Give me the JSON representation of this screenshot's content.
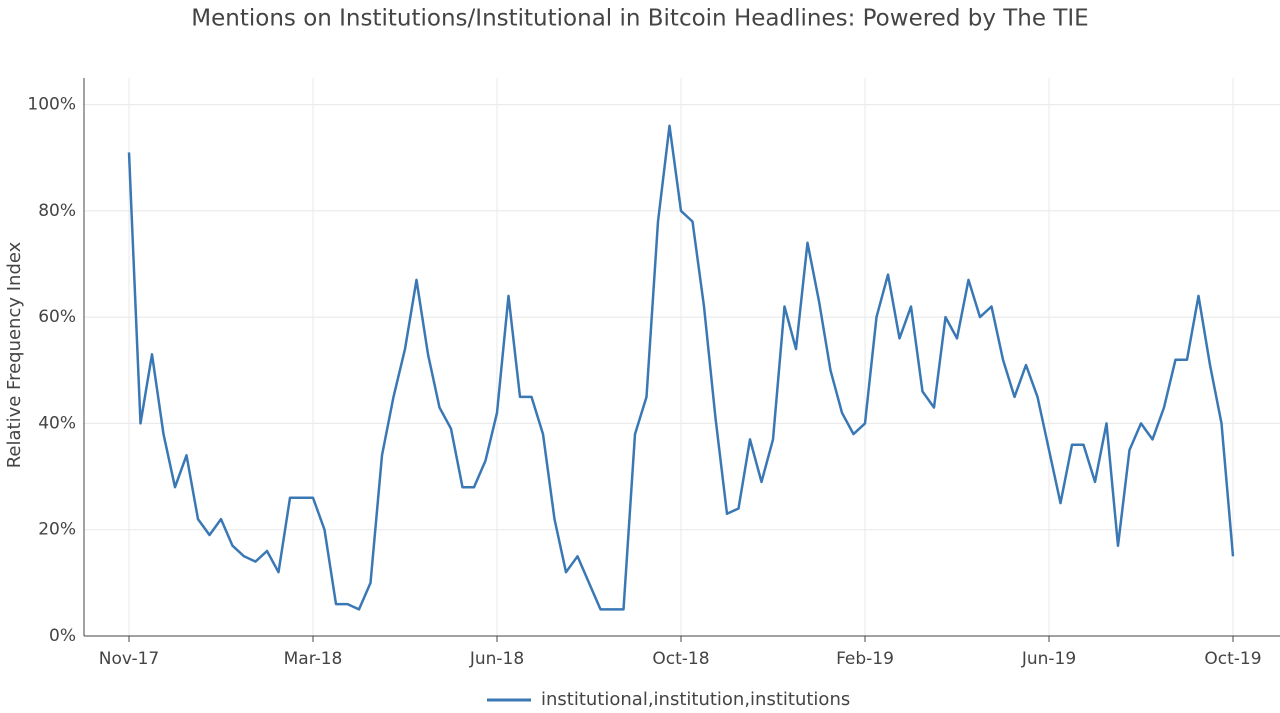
{
  "chart_data": {
    "type": "line",
    "title": "Mentions on Institutions/Institutional in Bitcoin Headlines: Powered by The TIE",
    "y_label": "Relative Frequency Index",
    "categories": [
      "Nov-17",
      null,
      null,
      null,
      null,
      null,
      null,
      null,
      null,
      null,
      null,
      null,
      null,
      null,
      null,
      null,
      "Mar-18",
      null,
      null,
      null,
      null,
      null,
      null,
      null,
      null,
      null,
      null,
      null,
      null,
      null,
      null,
      null,
      "Jun-18",
      null,
      null,
      null,
      null,
      null,
      null,
      null,
      null,
      null,
      null,
      null,
      null,
      null,
      null,
      null,
      "Oct-18",
      null,
      null,
      null,
      null,
      null,
      null,
      null,
      null,
      null,
      null,
      null,
      null,
      null,
      null,
      null,
      "Feb-19",
      null,
      null,
      null,
      null,
      null,
      null,
      null,
      null,
      null,
      null,
      null,
      null,
      null,
      null,
      null,
      "Jun-19",
      null,
      null,
      null,
      null,
      null,
      null,
      null,
      null,
      null,
      null,
      null,
      null,
      null,
      null,
      null,
      "Oct-19"
    ],
    "series": [
      {
        "name": "institutional,institution,institutions",
        "color": "#3a78b5",
        "values": [
          91,
          40,
          53,
          38,
          28,
          34,
          22,
          19,
          22,
          17,
          15,
          14,
          16,
          12,
          26,
          26,
          26,
          20,
          6,
          6,
          5,
          10,
          34,
          45,
          54,
          67,
          53,
          43,
          39,
          28,
          28,
          33,
          42,
          64,
          45,
          45,
          38,
          22,
          12,
          15,
          10,
          5,
          5,
          5,
          38,
          45,
          78,
          96,
          80,
          78,
          62,
          41,
          23,
          24,
          37,
          29,
          37,
          62,
          54,
          74,
          63,
          50,
          42,
          38,
          40,
          60,
          68,
          56,
          62,
          46,
          43,
          60,
          56,
          67,
          60,
          62,
          52,
          45,
          51,
          45,
          35,
          25,
          36,
          36,
          29,
          40,
          17,
          35,
          40,
          37,
          43,
          52,
          52,
          64,
          51,
          40,
          15
        ]
      }
    ],
    "ylim": [
      0,
      105
    ],
    "yticks": [
      {
        "value": 0,
        "label": "0%"
      },
      {
        "value": 20,
        "label": "20%"
      },
      {
        "value": 40,
        "label": "40%"
      },
      {
        "value": 60,
        "label": "60%"
      },
      {
        "value": 80,
        "label": "80%"
      },
      {
        "value": 100,
        "label": "100%"
      }
    ],
    "grid": true,
    "legend": "bottom"
  }
}
